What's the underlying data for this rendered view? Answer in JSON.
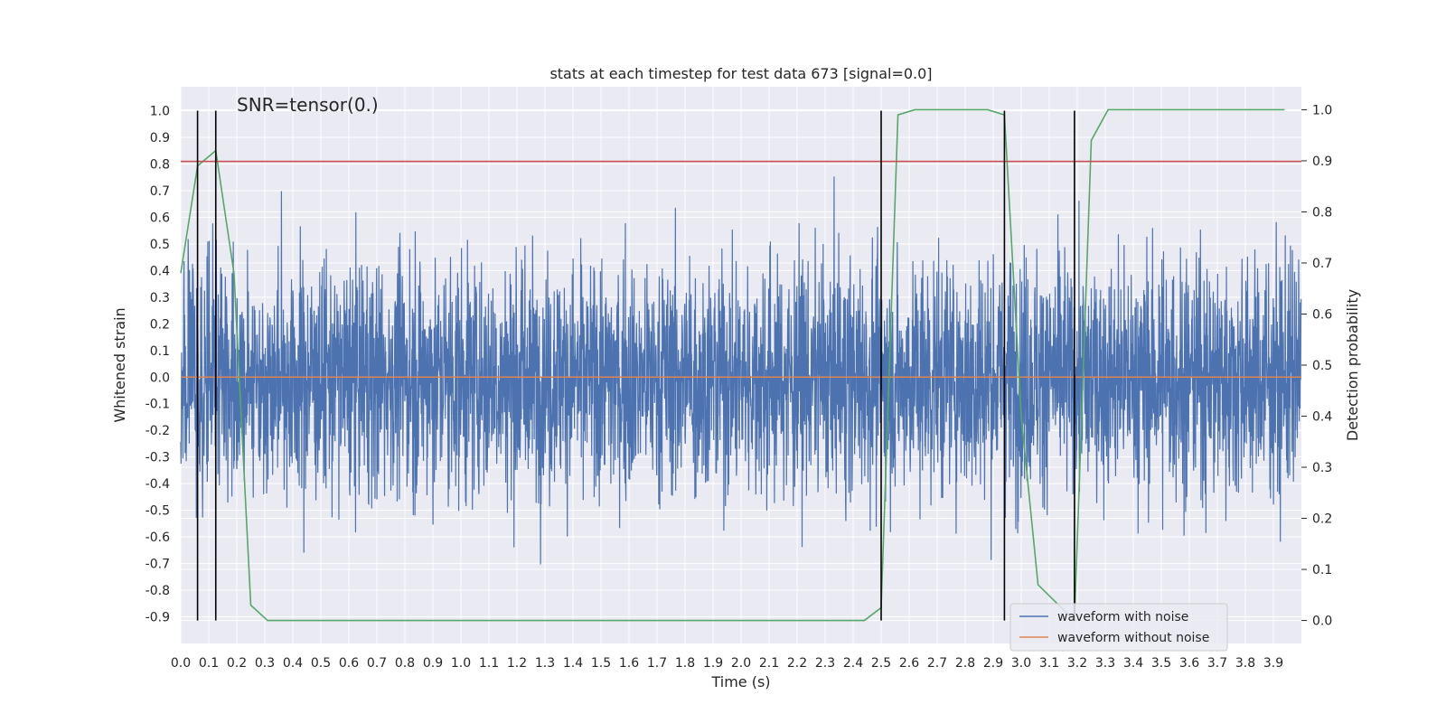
{
  "chart_data": {
    "type": "line",
    "title": "stats at each timestep for test data 673 [signal=0.0]",
    "xlabel": "Time (s)",
    "ylabel": "Whitened strain",
    "y2label": "Detection probability",
    "annotation": "SNR=tensor(0.)",
    "xlim": [
      0.0,
      4.0
    ],
    "ylim": [
      -1.0,
      1.09
    ],
    "y2lim": [
      -0.045,
      1.045
    ],
    "x_ticks": [
      "0.0",
      "0.1",
      "0.2",
      "0.3",
      "0.4",
      "0.5",
      "0.6",
      "0.7",
      "0.8",
      "0.9",
      "1.0",
      "1.1",
      "1.2",
      "1.3",
      "1.4",
      "1.5",
      "1.6",
      "1.7",
      "1.8",
      "1.9",
      "2.0",
      "2.1",
      "2.2",
      "2.3",
      "2.4",
      "2.5",
      "2.6",
      "2.7",
      "2.8",
      "2.9",
      "3.0",
      "3.1",
      "3.2",
      "3.3",
      "3.4",
      "3.5",
      "3.6",
      "3.7",
      "3.8",
      "3.9"
    ],
    "y_ticks": [
      "1.0",
      "0.9",
      "0.8",
      "0.7",
      "0.6",
      "0.5",
      "0.4",
      "0.3",
      "0.2",
      "0.1",
      "0.0",
      "-0.1",
      "-0.2",
      "-0.3",
      "-0.4",
      "-0.5",
      "-0.6",
      "-0.7",
      "-0.8",
      "-0.9"
    ],
    "y2_ticks": [
      "1.0",
      "0.9",
      "0.8",
      "0.7",
      "0.6",
      "0.5",
      "0.4",
      "0.3",
      "0.2",
      "0.1",
      "0.0"
    ],
    "grid": true,
    "legend_position": "bottom-right",
    "threshold_y": 0.81,
    "detection_markers_x": [
      0.06,
      0.125,
      2.5,
      2.94,
      3.19
    ],
    "series": [
      {
        "name": "waveform with noise",
        "color": "#4c72b0",
        "axis": "left",
        "description": "dense noisy whitened strain, roughly within -0.85 to 1.0, sampled densely across 0-4 s"
      },
      {
        "name": "waveform without noise",
        "color": "#dd8452",
        "axis": "left",
        "x": [
          0.0,
          4.0
        ],
        "y": [
          0.0,
          0.0
        ]
      },
      {
        "axis": "right",
        "color": "#55a868",
        "x": [
          0.0,
          0.06,
          0.125,
          0.19,
          0.25,
          0.31,
          0.44,
          2.44,
          2.5,
          2.56,
          2.62,
          2.88,
          2.94,
          3.0,
          3.06,
          3.19,
          3.25,
          3.31,
          3.94
        ],
        "y": [
          0.68,
          0.89,
          0.92,
          0.68,
          0.03,
          0.0,
          0.0,
          0.0,
          0.025,
          0.99,
          1.0,
          1.0,
          0.99,
          0.4,
          0.07,
          0.0,
          0.94,
          1.0,
          1.0
        ]
      },
      {
        "axis": "left",
        "color": "#c44e52",
        "x": [
          0.0,
          4.0
        ],
        "y": [
          0.81,
          0.81
        ]
      }
    ]
  }
}
